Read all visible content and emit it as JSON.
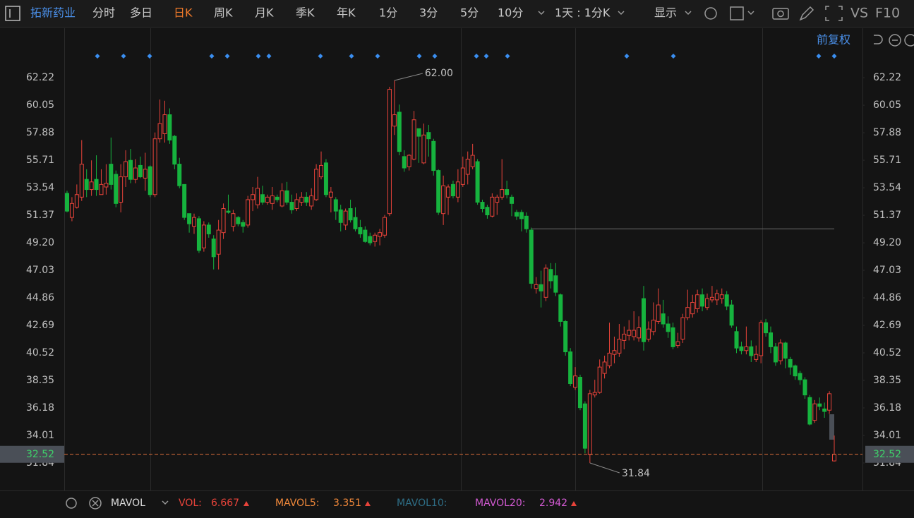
{
  "toolbar": {
    "stock_name": "拓新药业",
    "periods": [
      "分时",
      "多日",
      "日K",
      "周K",
      "月K",
      "季K",
      "年K",
      "1分",
      "3分",
      "5分",
      "10分"
    ],
    "period_select": "1天 : 1分K",
    "display": "显示",
    "vs": "VS",
    "f10": "F10"
  },
  "adjust": "前复权",
  "indicator_bar": {
    "name": "MAVOL",
    "vol_label": "VOL:",
    "vol": 6.667,
    "mavol5_label": "MAVOL5:",
    "mavol5": 3.351,
    "mavol10_label": "MAVOL10:",
    "mavol20_label": "MAVOL20:",
    "mavol20": 2.942
  },
  "chart_data": {
    "type": "candlestick",
    "up_color": "#e8433a",
    "down_color": "#16b33e",
    "ylim": [
      29.78,
      66.12
    ],
    "yticks": [
      62.22,
      60.05,
      57.88,
      55.71,
      53.54,
      51.37,
      {
        "value": 49.2,
        "label": "49.20"
      },
      47.03,
      44.86,
      42.69,
      40.52,
      38.35,
      36.18,
      34.01,
      31.84
    ],
    "max_annotation": {
      "value": 62,
      "label": "62.00"
    },
    "min_annotation": 31.84,
    "current_price": 32.52,
    "reference_line": 50.3,
    "open": [
      53.1,
      51.2,
      52.0,
      52.8,
      54.2,
      53.4,
      54.2,
      53.0,
      53.6,
      55.4,
      54.6,
      52.4,
      54.4,
      55.7,
      54.2,
      55.3,
      54.3,
      55.2,
      53.0,
      57.4,
      57.8,
      59.3,
      57.6,
      55.4,
      53.8,
      51.5,
      50.5,
      51.1,
      48.8,
      50.6,
      49.5,
      48.3,
      50.0,
      51.7,
      50.5,
      51.2,
      50.8,
      50.6,
      52.6,
      52.2,
      53.0,
      52.4,
      52.3,
      52.8,
      52.1,
      53.3,
      52.4,
      51.9,
      52.4,
      52.8,
      52.1,
      52.6,
      54.4,
      55.5,
      52.8,
      52.6,
      51.8,
      50.6,
      51.9,
      51.2,
      50.4,
      50.2,
      49.7,
      49.3,
      49.7,
      49.8,
      51.5,
      58.4,
      59.5,
      56.0,
      55.2,
      55.8,
      58.2,
      55.5,
      57.9,
      57.2,
      54.9,
      51.5,
      52.8,
      53.8,
      52.8,
      53.8,
      54.6,
      55.2,
      55.6,
      52.4,
      52.0,
      51.3,
      52.4,
      52.8,
      53.4,
      52.8,
      51.6,
      51.6,
      51.3,
      50.2,
      45.6,
      45.9,
      44.9,
      47.1,
      46.6,
      45.1,
      43.0,
      40.6,
      37.8,
      38.6,
      36.5,
      32.5,
      37.2,
      37.4,
      38.9,
      39.5,
      40.4,
      40.5,
      41.5,
      41.9,
      41.8,
      41.7,
      44.8,
      41.6,
      42.2,
      43.0,
      43.6,
      42.8,
      42.5,
      41.1,
      41.6,
      43.3,
      43.6,
      44.0,
      45.1,
      44.1,
      44.7,
      44.7,
      44.8,
      45.1,
      44.3,
      42.2,
      41.0,
      40.7,
      41.0,
      40.0,
      40.3,
      42.9,
      42.1,
      41.0,
      39.9,
      41.3,
      40.0,
      39.5,
      38.9,
      38.4,
      37.0,
      35.2,
      36.5,
      36.1,
      36.0,
      32.0
    ],
    "high": [
      53.3,
      52.8,
      53.8,
      57.3,
      55.0,
      55.7,
      56.1,
      55.0,
      55.4,
      57.5,
      54.9,
      55.4,
      56.5,
      56.6,
      55.8,
      56.0,
      56.3,
      55.3,
      57.9,
      60.5,
      60.4,
      59.8,
      57.7,
      55.9,
      53.8,
      51.5,
      51.5,
      51.3,
      50.9,
      50.8,
      49.8,
      51.0,
      52.3,
      53.0,
      51.8,
      51.3,
      51.0,
      52.9,
      53.6,
      54.4,
      53.7,
      53.0,
      53.6,
      53.0,
      53.9,
      54.0,
      53.0,
      53.1,
      53.2,
      53.2,
      53.5,
      55.4,
      56.4,
      55.8,
      53.6,
      52.8,
      52.2,
      51.9,
      52.6,
      52.0,
      51.0,
      50.5,
      50.0,
      50.0,
      50.3,
      51.4,
      61.5,
      62.0,
      60.1,
      56.5,
      56.2,
      59.6,
      58.2,
      58.6,
      58.5,
      57.4,
      55.0,
      54.5,
      53.8,
      54.1,
      55.0,
      56.0,
      56.4,
      57.0,
      55.8,
      52.6,
      52.2,
      53.1,
      53.0,
      55.8,
      54.1,
      53.0,
      51.8,
      51.8,
      51.6,
      50.4,
      46.5,
      47.0,
      47.5,
      47.6,
      47.6,
      45.2,
      43.1,
      40.9,
      39.4,
      38.8,
      36.7,
      37.6,
      38.4,
      40.0,
      40.3,
      42.9,
      41.8,
      42.8,
      42.6,
      43.1,
      43.8,
      43.4,
      45.8,
      43.0,
      44.5,
      45.6,
      44.7,
      43.4,
      42.9,
      42.1,
      43.6,
      45.5,
      45.1,
      45.5,
      45.6,
      45.2,
      45.8,
      45.5,
      45.6,
      45.4,
      44.7,
      42.6,
      41.4,
      42.6,
      41.5,
      41.1,
      43.1,
      43.2,
      42.6,
      41.3,
      41.6,
      41.4,
      40.2,
      39.6,
      39.1,
      38.6,
      37.2,
      36.8,
      37.0,
      36.6,
      37.5,
      34.0
    ],
    "low": [
      51.6,
      50.9,
      51.9,
      52.5,
      52.8,
      52.9,
      52.9,
      53.0,
      53.0,
      53.4,
      52.0,
      51.6,
      53.6,
      53.9,
      53.9,
      54.3,
      53.3,
      52.8,
      52.8,
      57.1,
      57.1,
      57.0,
      55.0,
      53.5,
      51.0,
      50.0,
      49.9,
      48.4,
      48.5,
      49.6,
      47.1,
      47.1,
      49.5,
      51.5,
      50.1,
      50.5,
      50.0,
      50.4,
      51.7,
      51.9,
      52.2,
      52.2,
      51.8,
      52.4,
      52.0,
      52.2,
      51.5,
      51.7,
      52.1,
      52.1,
      51.8,
      52.5,
      54.2,
      52.8,
      51.6,
      51.0,
      50.1,
      50.2,
      50.8,
      50.1,
      49.6,
      49.2,
      49.0,
      48.9,
      49.0,
      49.6,
      51.3,
      57.7,
      56.1,
      54.8,
      54.9,
      55.7,
      55.5,
      55.4,
      56.0,
      54.5,
      51.4,
      50.6,
      51.4,
      52.7,
      52.4,
      53.6,
      53.8,
      55.0,
      52.2,
      51.6,
      51.1,
      51.2,
      51.4,
      52.6,
      52.7,
      51.3,
      51.0,
      50.1,
      50.0,
      45.6,
      45.2,
      44.1,
      44.6,
      45.6,
      45.0,
      42.6,
      40.3,
      37.9,
      37.6,
      36.0,
      32.6,
      31.84,
      37.0,
      37.3,
      38.5,
      39.3,
      39.7,
      40.2,
      40.8,
      41.5,
      41.5,
      41.4,
      40.7,
      41.4,
      41.9,
      42.8,
      42.5,
      41.7,
      40.8,
      40.9,
      41.3,
      43.1,
      43.3,
      43.7,
      43.8,
      43.9,
      44.5,
      44.3,
      44.4,
      43.9,
      42.5,
      40.5,
      40.4,
      40.4,
      39.8,
      39.8,
      39.7,
      41.8,
      40.5,
      39.5,
      39.6,
      39.3,
      38.8,
      38.4,
      38.0,
      36.9,
      34.8,
      35.0,
      36.0,
      35.4,
      35.7,
      31.95
    ],
    "close": [
      51.7,
      52.3,
      53.0,
      55.4,
      53.4,
      54.0,
      53.4,
      53.8,
      53.9,
      53.8,
      52.3,
      54.4,
      55.6,
      54.2,
      55.1,
      54.4,
      55.0,
      53.0,
      57.4,
      58.6,
      59.3,
      57.3,
      55.4,
      53.7,
      51.2,
      50.7,
      51.2,
      48.6,
      50.6,
      49.9,
      48.1,
      50.2,
      51.9,
      51.6,
      51.5,
      50.7,
      50.5,
      52.6,
      53.0,
      53.5,
      52.4,
      52.8,
      52.9,
      52.6,
      53.3,
      52.4,
      51.8,
      52.6,
      52.8,
      52.4,
      52.9,
      55.0,
      55.3,
      53.0,
      53.2,
      51.7,
      50.8,
      51.7,
      51.0,
      50.3,
      49.9,
      49.3,
      49.2,
      49.8,
      50.0,
      51.2,
      61.3,
      59.3,
      56.4,
      55.1,
      56.1,
      58.9,
      57.6,
      57.7,
      57.4,
      54.9,
      51.6,
      53.7,
      53.6,
      52.9,
      54.0,
      55.1,
      55.8,
      56.1,
      52.4,
      51.9,
      51.4,
      52.8,
      52.8,
      53.4,
      53.0,
      52.3,
      51.3,
      51.1,
      50.3,
      46.0,
      45.9,
      45.4,
      47.2,
      46.2,
      45.3,
      43.0,
      40.6,
      38.1,
      38.7,
      36.2,
      33.0,
      37.3,
      37.4,
      39.4,
      39.8,
      40.5,
      40.7,
      41.6,
      42.0,
      42.3,
      42.3,
      42.5,
      41.4,
      42.4,
      43.1,
      44.3,
      42.8,
      42.2,
      41.0,
      41.4,
      43.3,
      44.1,
      44.5,
      45.1,
      44.2,
      44.8,
      44.9,
      45.2,
      45.1,
      44.2,
      42.7,
      40.9,
      40.7,
      41.0,
      40.3,
      40.4,
      42.9,
      42.1,
      41.0,
      39.8,
      41.3,
      40.1,
      39.4,
      38.7,
      38.4,
      37.2,
      34.9,
      36.5,
      36.3,
      35.9,
      37.3,
      32.52
    ]
  }
}
